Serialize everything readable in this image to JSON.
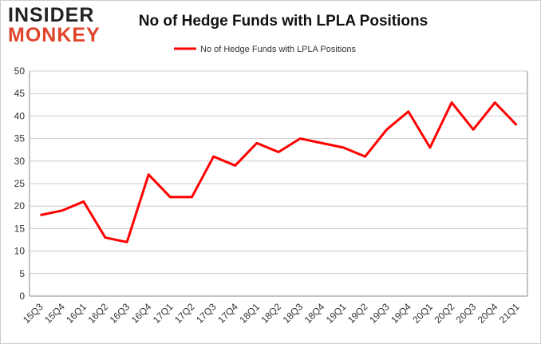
{
  "logo": {
    "top": "INSIDER",
    "bottom": "MONKEY"
  },
  "chart_data": {
    "type": "line",
    "title": "No of Hedge Funds with LPLA Positions",
    "categories": [
      "15Q3",
      "15Q4",
      "16Q1",
      "16Q2",
      "16Q3",
      "16Q4",
      "17Q1",
      "17Q2",
      "17Q3",
      "17Q4",
      "18Q1",
      "18Q2",
      "18Q3",
      "18Q4",
      "19Q1",
      "19Q2",
      "19Q3",
      "19Q4",
      "20Q1",
      "20Q2",
      "20Q3",
      "20Q4",
      "21Q1"
    ],
    "series": [
      {
        "name": "No of Hedge Funds with LPLA Positions",
        "color": "#ff0000",
        "values": [
          18,
          19,
          21,
          13,
          12,
          27,
          22,
          22,
          31,
          29,
          34,
          32,
          35,
          34,
          33,
          31,
          37,
          41,
          33,
          43,
          37,
          43,
          38
        ]
      }
    ],
    "ylim": [
      0,
      50
    ],
    "yticks": [
      0,
      5,
      10,
      15,
      20,
      25,
      30,
      35,
      40,
      45,
      50
    ],
    "grid": true,
    "legend": "top"
  }
}
